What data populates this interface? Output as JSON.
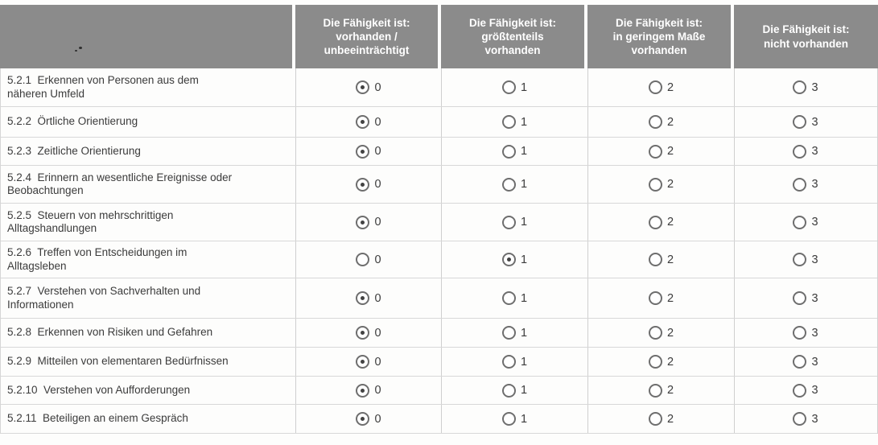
{
  "colors": {
    "header_bg": "#8b8b8b",
    "header_text": "#ffffff",
    "body_text": "#3b3b3b",
    "grid_line": "#d8d8d8",
    "radio_dot": "#424242"
  },
  "table": {
    "column_headers": [
      "",
      "Die Fähigkeit ist:\nvorhanden /\nunbeeinträchtigt",
      "Die Fähigkeit ist:\ngrößtenteils\nvorhanden",
      "Die Fähigkeit ist:\nin geringem Maße\nvorhanden",
      "Die Fähigkeit ist:\nnicht vorhanden"
    ],
    "rows": [
      {
        "label": "5.2.1  Erkennen von Personen aus dem\nnäheren Umfeld",
        "options": [
          "0",
          "1",
          "2",
          "3"
        ],
        "selected": "0"
      },
      {
        "label": "5.2.2  Örtliche Orientierung",
        "options": [
          "0",
          "1",
          "2",
          "3"
        ],
        "selected": "0"
      },
      {
        "label": "5.2.3  Zeitliche Orientierung",
        "options": [
          "0",
          "1",
          "2",
          "3"
        ],
        "selected": "0"
      },
      {
        "label": "5.2.4  Erinnern an wesentliche Ereignisse oder\nBeobachtungen",
        "options": [
          "0",
          "1",
          "2",
          "3"
        ],
        "selected": "0"
      },
      {
        "label": "5.2.5  Steuern von mehrschrittigen\nAlltagshandlungen",
        "options": [
          "0",
          "1",
          "2",
          "3"
        ],
        "selected": "0"
      },
      {
        "label": "5.2.6  Treffen von Entscheidungen im\nAlltagsleben",
        "options": [
          "0",
          "1",
          "2",
          "3"
        ],
        "selected": "1"
      },
      {
        "label": "5.2.7  Verstehen von Sachverhalten und\nInformationen",
        "options": [
          "0",
          "1",
          "2",
          "3"
        ],
        "selected": "0"
      },
      {
        "label": "5.2.8  Erkennen von Risiken und Gefahren",
        "options": [
          "0",
          "1",
          "2",
          "3"
        ],
        "selected": "0"
      },
      {
        "label": "5.2.9  Mitteilen von elementaren Bedürfnissen",
        "options": [
          "0",
          "1",
          "2",
          "3"
        ],
        "selected": "0"
      },
      {
        "label": "5.2.10  Verstehen von Aufforderungen",
        "options": [
          "0",
          "1",
          "2",
          "3"
        ],
        "selected": "0"
      },
      {
        "label": "5.2.11  Beteiligen an einem Gespräch",
        "options": [
          "0",
          "1",
          "2",
          "3"
        ],
        "selected": "0"
      }
    ]
  }
}
